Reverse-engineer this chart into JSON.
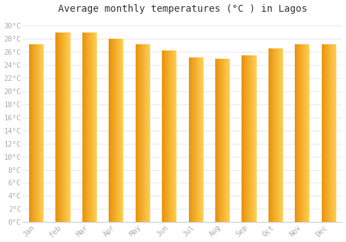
{
  "title": "Average monthly temperatures (°C ) in Lagos",
  "months": [
    "Jan",
    "Feb",
    "Mar",
    "Apr",
    "May",
    "Jun",
    "Jul",
    "Aug",
    "Sep",
    "Oct",
    "Nov",
    "Dec"
  ],
  "values": [
    27.2,
    29.0,
    29.0,
    28.0,
    27.2,
    26.2,
    25.2,
    25.0,
    25.5,
    26.5,
    27.2,
    27.2
  ],
  "bar_color_left": "#E8920A",
  "bar_color_right": "#FFD055",
  "background_color": "#ffffff",
  "plot_bg_color": "#ffffff",
  "grid_color": "#e8e8f0",
  "ytick_labels": [
    "0°C",
    "2°C",
    "4°C",
    "6°C",
    "8°C",
    "10°C",
    "12°C",
    "14°C",
    "16°C",
    "18°C",
    "20°C",
    "22°C",
    "24°C",
    "26°C",
    "28°C",
    "30°C"
  ],
  "ytick_values": [
    0,
    2,
    4,
    6,
    8,
    10,
    12,
    14,
    16,
    18,
    20,
    22,
    24,
    26,
    28,
    30
  ],
  "ylim": [
    0,
    31
  ],
  "title_fontsize": 10,
  "tick_fontsize": 7.5,
  "tick_color": "#aaaaaa",
  "axis_font": "monospace",
  "bar_width": 0.55
}
